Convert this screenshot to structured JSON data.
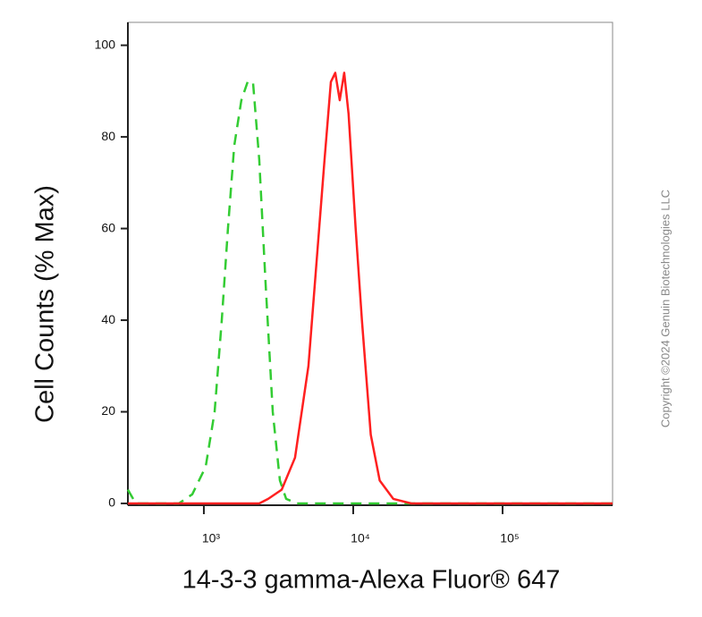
{
  "chart_data": {
    "type": "line",
    "x_label": "14-3-3 gamma-Alexa Fluor® 647",
    "y_label": "Cell Counts (% Max)",
    "copyright": "Copyright ©2024 Genuin Biotechnologies LLC",
    "xscale": "log",
    "xlim": [
      310,
      545000
    ],
    "ylim": [
      0,
      105
    ],
    "xticks": [
      {
        "value": 1000,
        "label": "10³"
      },
      {
        "value": 10000,
        "label": "10⁴"
      },
      {
        "value": 100000,
        "label": "10⁵"
      }
    ],
    "yticks": [
      0,
      20,
      40,
      60,
      80,
      100
    ],
    "series": [
      {
        "color": "#33cc33",
        "line_style": "dashed",
        "x": [
          310,
          350,
          680,
          836,
          1028,
          1180,
          1318,
          1450,
          1597,
          1783,
          1964,
          2134,
          2350,
          2589,
          2892,
          3228,
          3555,
          4200,
          545000
        ],
        "values": [
          3,
          0,
          0,
          2,
          8,
          20,
          40,
          60,
          78,
          88,
          92,
          92,
          75,
          48,
          20,
          5,
          1,
          0,
          0
        ]
      },
      {
        "color": "#ff2020",
        "line_style": "solid",
        "x": [
          310,
          2350,
          2696,
          3318,
          4078,
          5013,
          5756,
          6428,
          7084,
          7586,
          8124,
          8700,
          9317,
          10389,
          11436,
          13112,
          15033,
          18555,
          24520,
          545000
        ],
        "values": [
          0,
          0,
          1,
          3,
          10,
          30,
          55,
          75,
          92,
          94,
          88,
          94,
          85,
          60,
          40,
          15,
          5,
          1,
          0,
          0
        ]
      }
    ]
  }
}
